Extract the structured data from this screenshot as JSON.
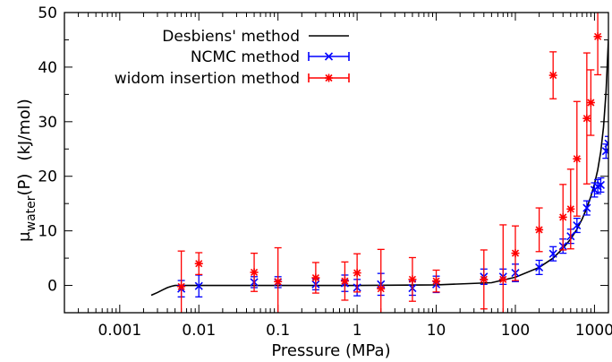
{
  "chart_data": {
    "type": "scatter",
    "xscale": "log",
    "xlim": [
      0.0002,
      1500
    ],
    "ylim": [
      -5,
      50
    ],
    "xticks": [
      0.001,
      0.01,
      0.1,
      1,
      10,
      100,
      1000
    ],
    "xtick_labels": [
      "0.001",
      "0.01",
      "0.1",
      "1",
      "10",
      "100",
      "1000"
    ],
    "yticks": [
      0,
      10,
      20,
      30,
      40,
      50
    ],
    "ytick_labels": [
      "0",
      "10",
      "20",
      "30",
      "40",
      "50"
    ],
    "xlabel": "Pressure (MPa)",
    "ylabel_main": "μ",
    "ylabel_sub": "water",
    "ylabel_rest": "(P)",
    "ylabel_unit": "(kJ/mol)",
    "legend_position": "top-left",
    "series": [
      {
        "name": "Desbiens' method",
        "kind": "line",
        "color": "#000000",
        "x": [
          0.0025,
          0.003,
          0.0035,
          0.004,
          0.0045,
          0.005,
          0.006,
          0.01,
          0.1,
          1,
          10,
          50,
          100,
          200,
          300,
          400,
          500,
          600,
          700,
          800,
          900,
          1000,
          1100,
          1200,
          1300,
          1400,
          1500
        ],
        "y": [
          -1.8,
          -1.3,
          -0.8,
          -0.4,
          -0.15,
          0,
          0,
          0,
          0,
          0,
          0.1,
          0.5,
          1.5,
          3.3,
          5.0,
          6.8,
          8.5,
          10.3,
          12.2,
          14.2,
          16.3,
          18.6,
          21.2,
          24.5,
          29.0,
          35.5,
          45
        ]
      },
      {
        "name": "NCMC method",
        "kind": "errorbar",
        "marker": "x",
        "color": "#0000ff",
        "x": [
          0.006,
          0.01,
          0.05,
          0.1,
          0.3,
          0.7,
          1,
          2,
          5,
          10,
          40,
          70,
          100,
          200,
          300,
          400,
          500,
          600,
          800,
          1000,
          1100,
          1200,
          1400,
          1500
        ],
        "y": [
          -0.6,
          -0.1,
          0.6,
          0.6,
          0.2,
          0.4,
          -0.4,
          0.2,
          -0.5,
          0.2,
          1.6,
          1.6,
          2.3,
          3.3,
          5.8,
          7.2,
          9.0,
          11.0,
          14.2,
          17.5,
          18.1,
          18.4,
          24.6,
          26.0
        ],
        "yerr": [
          1.5,
          2.0,
          1.0,
          1.0,
          1.0,
          1.5,
          1.5,
          2.0,
          1.3,
          1.5,
          1.4,
          1.4,
          1.6,
          1.3,
          1.3,
          1.3,
          1.3,
          1.3,
          1.3,
          1.3,
          1.3,
          1.3,
          1.3,
          1.3
        ]
      },
      {
        "name": "widom insertion method",
        "kind": "errorbar",
        "marker": "asterisk",
        "color": "#ff0000",
        "x": [
          0.006,
          0.01,
          0.05,
          0.1,
          0.3,
          0.7,
          1,
          2,
          5,
          10,
          40,
          70,
          100,
          200,
          300,
          400,
          500,
          600,
          800,
          900,
          1100
        ],
        "y": [
          -0.2,
          4.0,
          2.4,
          0.7,
          1.4,
          0.8,
          2.3,
          -0.6,
          1.1,
          0.8,
          1.1,
          1.1,
          5.9,
          10.2,
          38.5,
          12.5,
          14.0,
          23.2,
          30.6,
          33.5,
          45.6
        ],
        "yerr": [
          6.5,
          2.0,
          3.5,
          6.2,
          2.8,
          3.5,
          3.5,
          7.2,
          4.0,
          2.0,
          5.4,
          10.0,
          5.0,
          4.0,
          4.3,
          6.0,
          7.3,
          10.5,
          12.0,
          6.0,
          7.0
        ]
      }
    ]
  }
}
